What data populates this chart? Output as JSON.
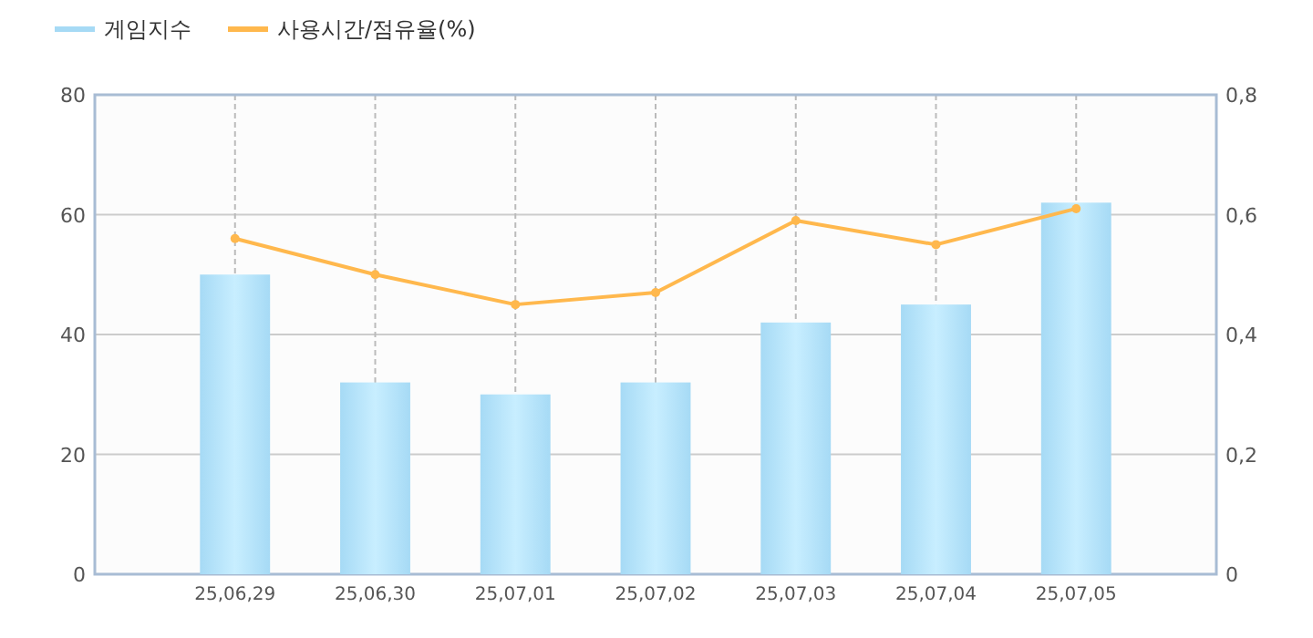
{
  "chart_data": {
    "type": "bar",
    "categories": [
      "25,06,29",
      "25,06,30",
      "25,07,01",
      "25,07,02",
      "25,07,03",
      "25,07,04",
      "25,07,05"
    ],
    "series": [
      {
        "name": "게임지수",
        "color": "#a6daf5",
        "values": [
          50,
          32,
          30,
          32,
          42,
          45,
          62
        ]
      },
      {
        "name": "사용시간/점유율(%)",
        "type": "line",
        "axis": "y2",
        "color": "#ffb84d",
        "marker": "circle",
        "values": [
          0.56,
          0.5,
          0.45,
          0.47,
          0.59,
          0.55,
          0.61
        ]
      }
    ],
    "ylim": [
      0,
      80
    ],
    "yticks": [
      0,
      20,
      40,
      60,
      80
    ],
    "y2lim": [
      0,
      0.8
    ],
    "y2ticks": [
      {
        "value": 0,
        "label": "0"
      },
      {
        "value": 0.2,
        "label": "0,2"
      },
      {
        "value": 0.4,
        "label": "0,4"
      },
      {
        "value": 0.6,
        "label": "0,6"
      },
      {
        "value": 0.8,
        "label": "0,8"
      }
    ],
    "grid": true,
    "legend": "top left"
  }
}
